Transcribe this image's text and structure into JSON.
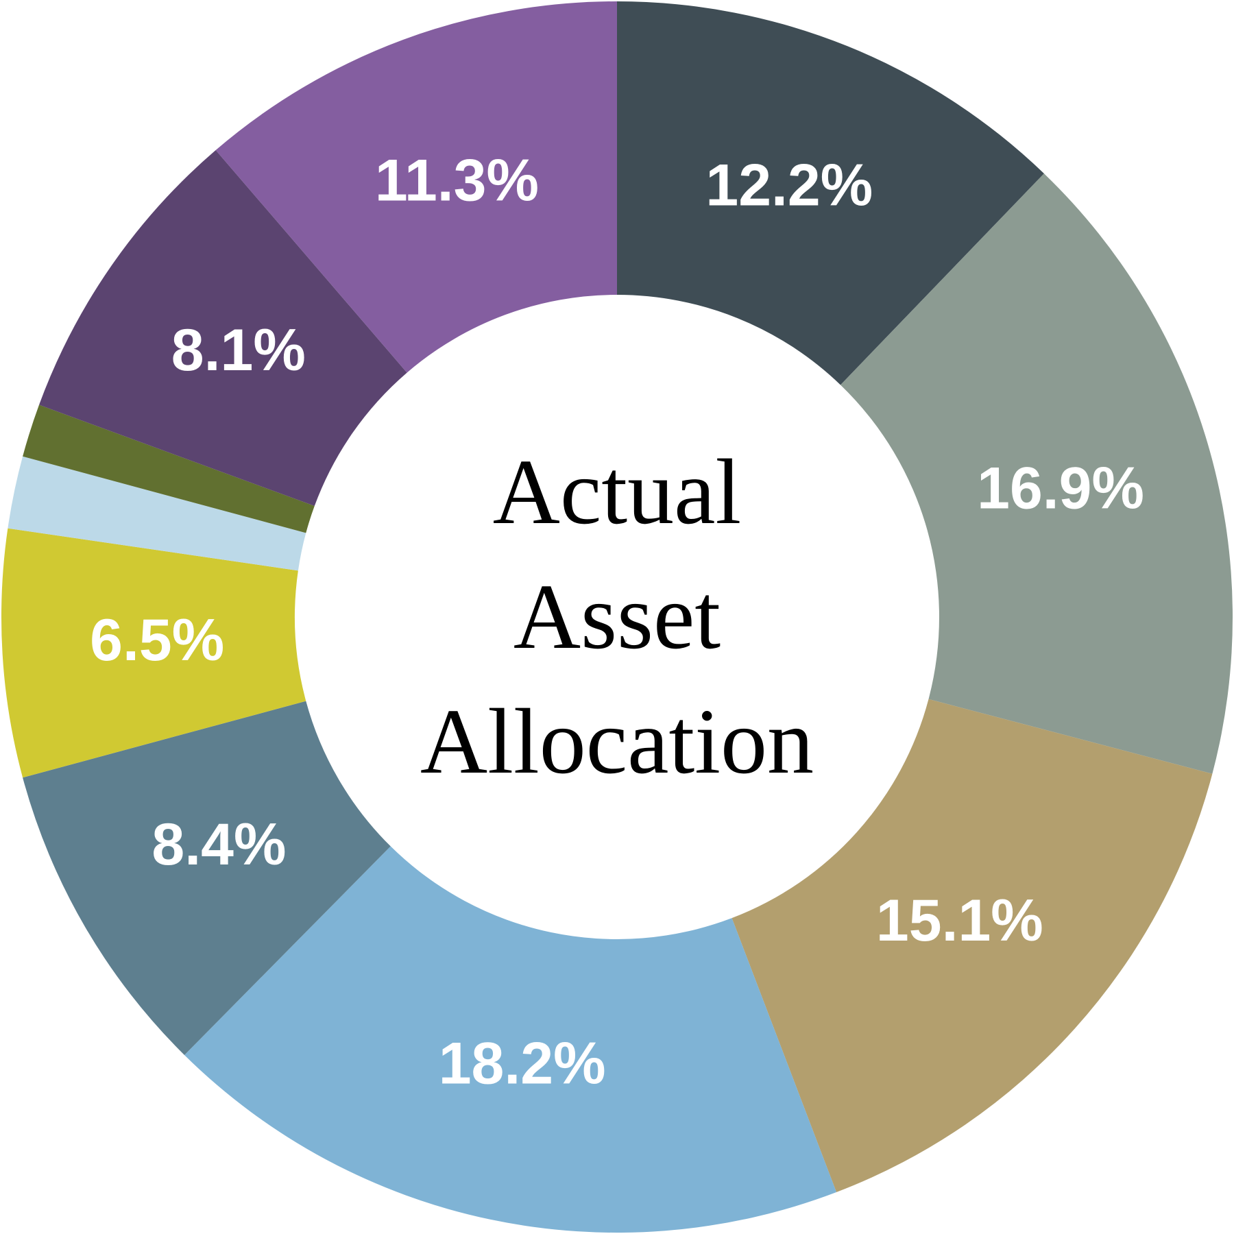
{
  "chart_data": {
    "type": "donut",
    "title": "Actual Asset Allocation",
    "values": [
      12.2,
      16.9,
      15.1,
      18.2,
      8.4,
      6.5,
      1.9,
      1.4,
      8.1,
      11.3
    ],
    "value_labels": [
      "12.2%",
      "16.9%",
      "15.1%",
      "18.2%",
      "8.4%",
      "6.5%",
      null,
      null,
      "8.1%",
      "11.3%"
    ],
    "colors": [
      "#3f4d55",
      "#8c9b92",
      "#b39f6e",
      "#7fb3d5",
      "#5e7f8f",
      "#d0c932",
      "#bcd9e8",
      "#617030",
      "#5b4470",
      "#845ea0"
    ]
  }
}
